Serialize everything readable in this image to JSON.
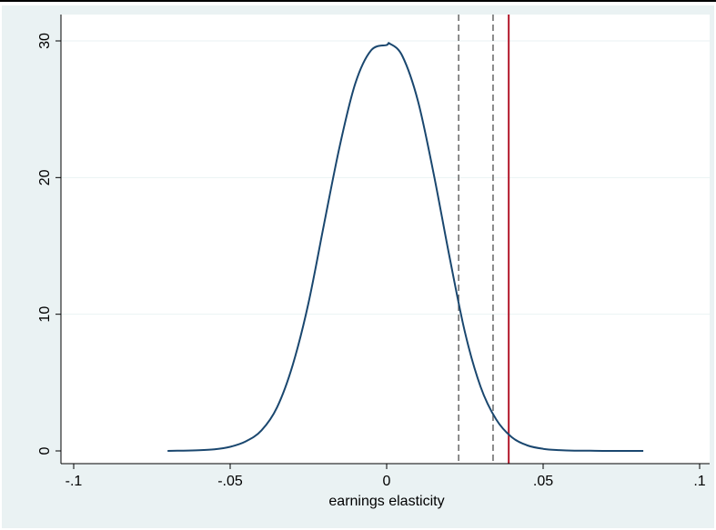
{
  "chart_data": {
    "type": "line",
    "title": "",
    "xlabel": "earnings elasticity",
    "ylabel": "",
    "xlim": [
      -0.1,
      0.1
    ],
    "ylim": [
      0,
      30
    ],
    "grid": "horizontal",
    "x_ticks": [
      {
        "value": -0.1,
        "label": "-.1"
      },
      {
        "value": -0.05,
        "label": "-.05"
      },
      {
        "value": 0,
        "label": "0"
      },
      {
        "value": 0.05,
        "label": ".05"
      },
      {
        "value": 0.1,
        "label": ".1"
      }
    ],
    "y_ticks": [
      {
        "value": 0,
        "label": "0"
      },
      {
        "value": 10,
        "label": "10"
      },
      {
        "value": 20,
        "label": "20"
      },
      {
        "value": 30,
        "label": "30"
      }
    ],
    "series": [
      {
        "color": "#1a476f",
        "x": [
          -0.07,
          -0.065,
          -0.06,
          -0.055,
          -0.05,
          -0.045,
          -0.04,
          -0.035,
          -0.03,
          -0.025,
          -0.02,
          -0.015,
          -0.01,
          -0.005,
          0,
          0.001,
          0.005,
          0.01,
          0.015,
          0.02,
          0.025,
          0.03,
          0.035,
          0.04,
          0.045,
          0.05,
          0.055,
          0.06,
          0.065,
          0.07,
          0.075,
          0.082
        ],
        "y": [
          0.0,
          0.02,
          0.05,
          0.12,
          0.3,
          0.7,
          1.5,
          3.2,
          6.3,
          10.8,
          16.6,
          22.3,
          26.9,
          29.3,
          29.7,
          29.8,
          28.9,
          25.6,
          20.3,
          14.3,
          8.7,
          4.7,
          2.3,
          1.0,
          0.4,
          0.15,
          0.06,
          0.02,
          0.01,
          0.0,
          0.0,
          0.0
        ]
      }
    ],
    "reference_lines": [
      {
        "x": 0.023,
        "style": "dashed",
        "color": "#666666"
      },
      {
        "x": 0.034,
        "style": "dashed",
        "color": "#666666"
      },
      {
        "x": 0.039,
        "style": "solid",
        "color": "#b2182b"
      }
    ]
  }
}
